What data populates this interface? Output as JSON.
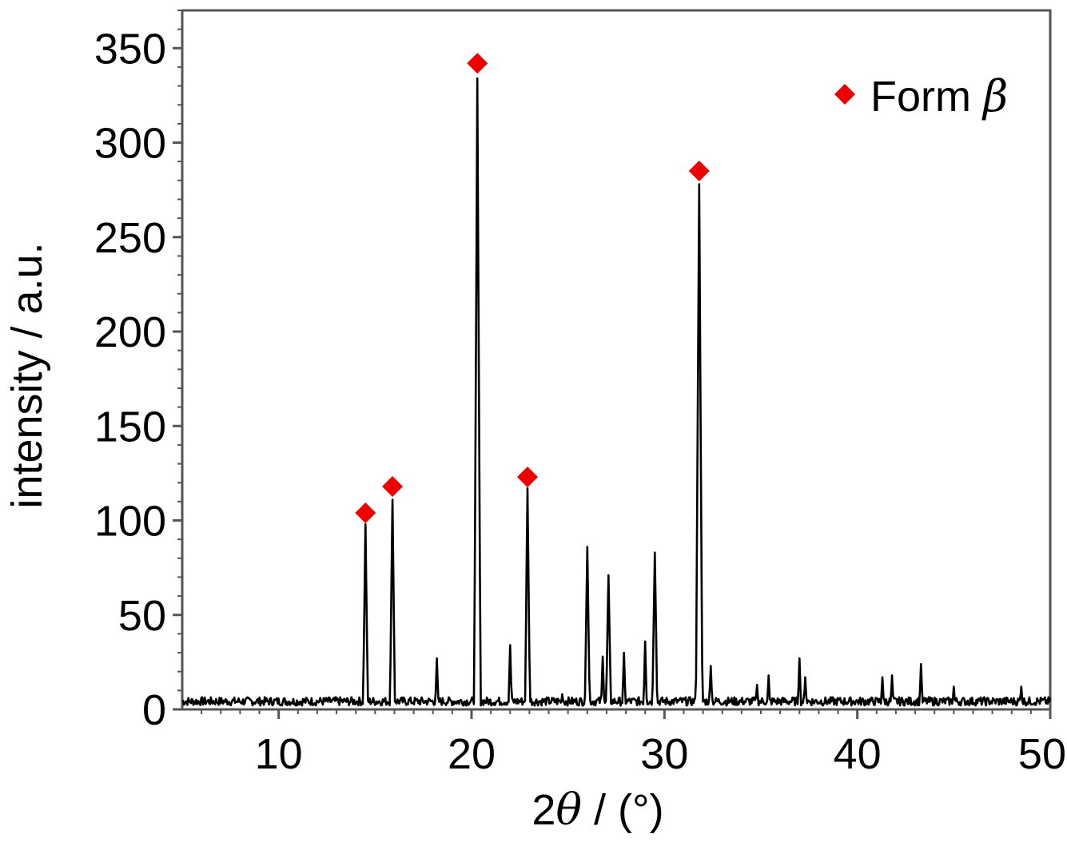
{
  "chart_data": {
    "type": "line",
    "title": "",
    "xlabel": "2θ / (°)",
    "xlabel_parts": {
      "prefix": "2",
      "symbol": "θ",
      "suffix": " / (°)"
    },
    "ylabel": "intensity / a.u.",
    "xlim": [
      5,
      50
    ],
    "ylim": [
      0,
      370
    ],
    "x_ticks": [
      10,
      20,
      30,
      40,
      50
    ],
    "y_ticks": [
      0,
      50,
      100,
      150,
      200,
      250,
      300,
      350
    ],
    "x_tick_labels": [
      "10",
      "20",
      "30",
      "40",
      "50"
    ],
    "y_tick_labels": [
      "0",
      "50",
      "100",
      "150",
      "200",
      "250",
      "300",
      "350"
    ],
    "grid": false,
    "legend": {
      "placement": "top-right",
      "entries": [
        {
          "label": "Form β",
          "label_text": "Form ",
          "label_symbol": "β",
          "marker": "diamond",
          "color": "#ee0000"
        }
      ]
    },
    "series": [
      {
        "style": "line",
        "color": "#000000",
        "baseline": 2,
        "peaks": [
          {
            "x": 14.5,
            "y": 98
          },
          {
            "x": 15.9,
            "y": 111
          },
          {
            "x": 18.2,
            "y": 27
          },
          {
            "x": 20.3,
            "y": 334
          },
          {
            "x": 22.0,
            "y": 34
          },
          {
            "x": 22.9,
            "y": 117
          },
          {
            "x": 24.7,
            "y": 8
          },
          {
            "x": 26.0,
            "y": 86
          },
          {
            "x": 26.8,
            "y": 28
          },
          {
            "x": 27.1,
            "y": 71
          },
          {
            "x": 27.9,
            "y": 30
          },
          {
            "x": 29.0,
            "y": 36
          },
          {
            "x": 29.5,
            "y": 83
          },
          {
            "x": 31.8,
            "y": 278
          },
          {
            "x": 32.4,
            "y": 23
          },
          {
            "x": 34.8,
            "y": 13
          },
          {
            "x": 35.4,
            "y": 18
          },
          {
            "x": 37.0,
            "y": 27
          },
          {
            "x": 37.3,
            "y": 17
          },
          {
            "x": 41.3,
            "y": 17
          },
          {
            "x": 41.8,
            "y": 18
          },
          {
            "x": 43.3,
            "y": 24
          },
          {
            "x": 45.0,
            "y": 12
          },
          {
            "x": 48.5,
            "y": 12
          }
        ]
      },
      {
        "name": "Form β",
        "style": "markers",
        "marker": "diamond",
        "color": "#ee0000",
        "points": [
          {
            "x": 14.5,
            "y": 104
          },
          {
            "x": 15.9,
            "y": 118
          },
          {
            "x": 20.3,
            "y": 342
          },
          {
            "x": 22.9,
            "y": 123
          },
          {
            "x": 31.8,
            "y": 285
          }
        ]
      }
    ]
  }
}
